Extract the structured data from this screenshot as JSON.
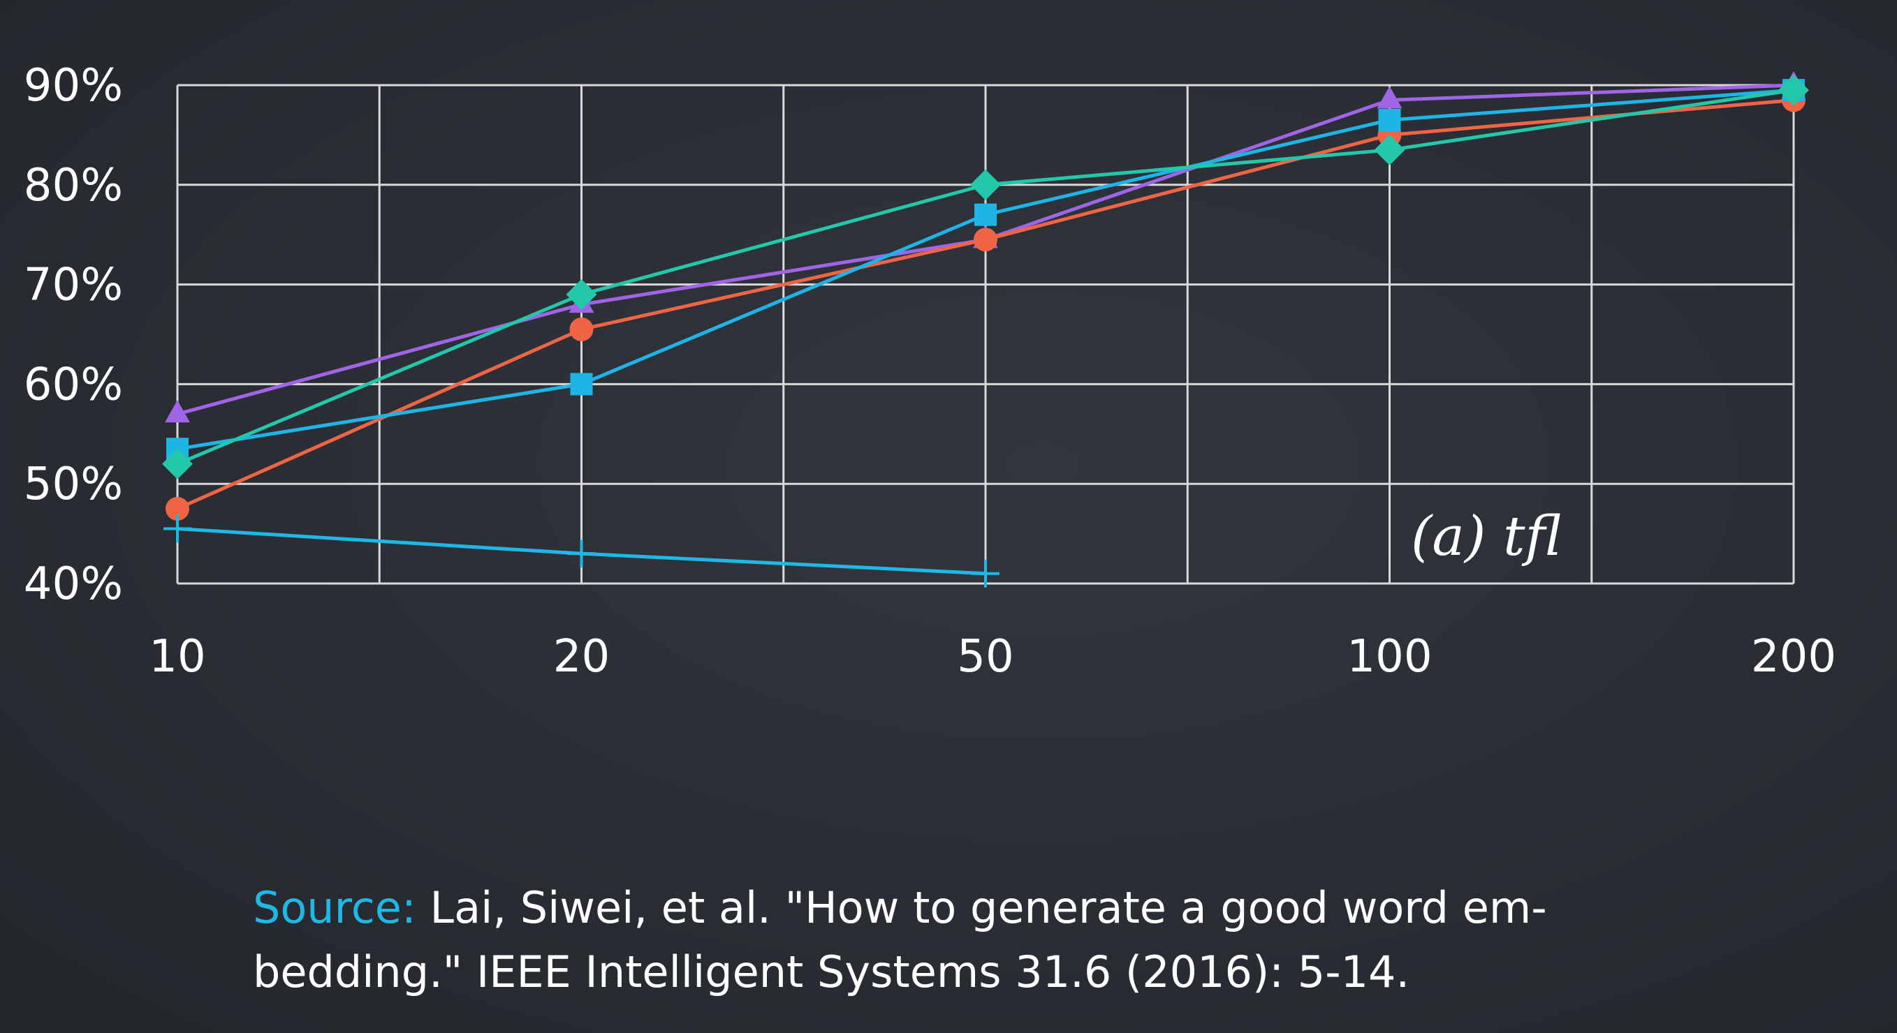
{
  "chart_data": {
    "type": "line",
    "panel_label": "(a) tfl",
    "x": [
      "10",
      "20",
      "50",
      "100",
      "200"
    ],
    "ytick_labels": [
      "90%",
      "80%",
      "70%",
      "60%",
      "50%",
      "40%"
    ],
    "ylim": [
      40,
      90
    ],
    "y_unit": "%",
    "grid": true,
    "legend": "none",
    "series": [
      {
        "color": "#a064e6",
        "marker": "triangle",
        "values": [
          57,
          68,
          74.5,
          88.5,
          90
        ]
      },
      {
        "color": "#f06446",
        "marker": "circle",
        "values": [
          47.5,
          65.5,
          74.5,
          85,
          88.5
        ]
      },
      {
        "color": "#1eb4e6",
        "marker": "square",
        "values": [
          53.5,
          60,
          77,
          86.5,
          89.5
        ]
      },
      {
        "color": "#23c8aa",
        "marker": "diamond",
        "values": [
          52,
          69,
          80,
          83.5,
          89.5
        ]
      },
      {
        "color": "#1eb8e6",
        "marker": "plus",
        "values": [
          45.5,
          43,
          41,
          null,
          null
        ]
      }
    ]
  },
  "caption": {
    "label": "Source:",
    "line1": " Lai, Siwei, et al. \"How to generate a good word em-",
    "line2": "bedding.\" IEEE Intelligent Systems 31.6 (2016): 5-14."
  }
}
